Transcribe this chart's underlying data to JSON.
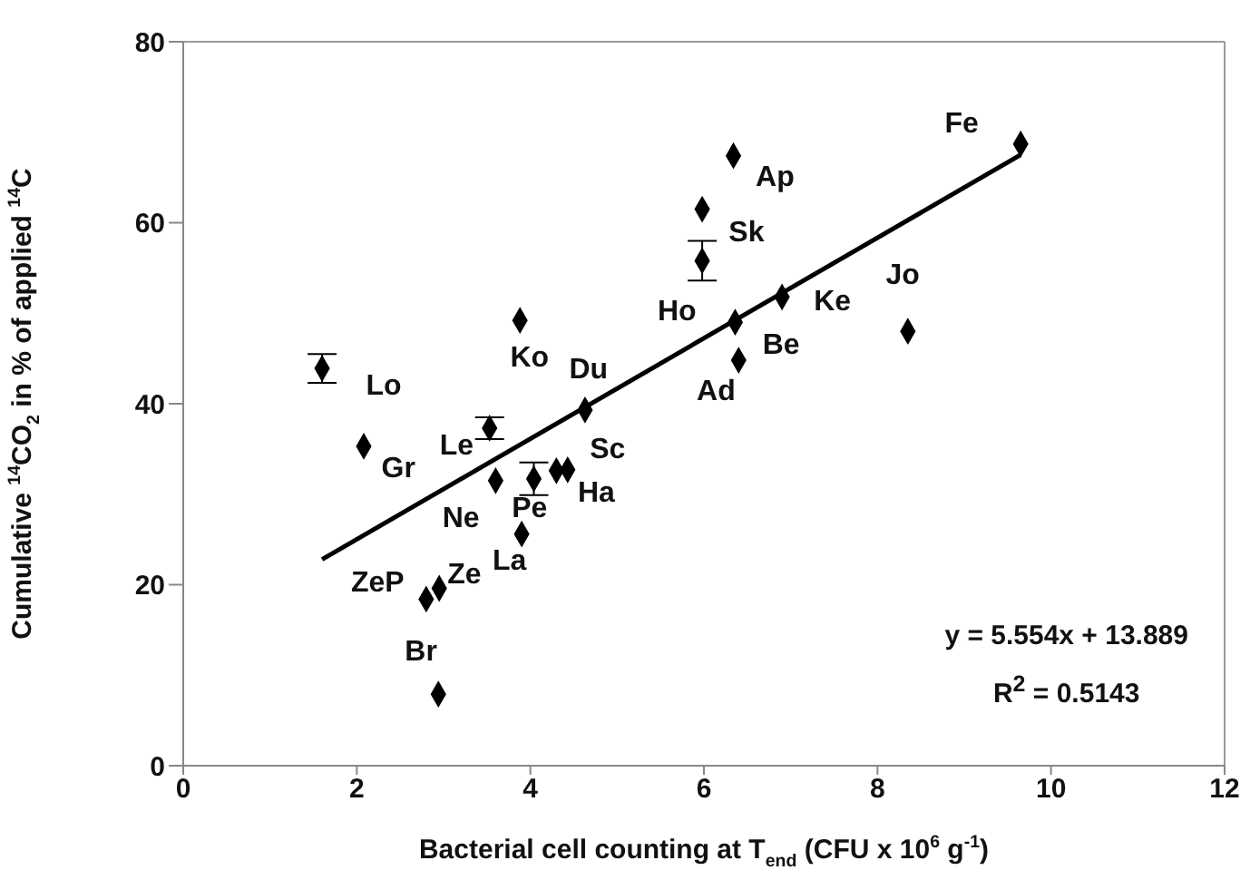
{
  "chart_data": {
    "type": "scatter",
    "xlabel": "Bacterial cell counting at T$_{end}$ (CFU x 10$^{6}$ g$^{-1}$)",
    "ylabel": "Cumulative $^{14}$CO$_{2}$ in % of applied $^{14}$C",
    "x": [
      1.6,
      2.08,
      3.53,
      3.88,
      4.63,
      3.6,
      4.04,
      4.3,
      4.43,
      3.9,
      2.8,
      2.95,
      2.94,
      9.65,
      6.34,
      5.98,
      5.98,
      6.36,
      6.9,
      6.4,
      8.35
    ],
    "series": [
      {
        "color": "#000000",
        "marker": "diamond",
        "values": [
          43.9,
          35.3,
          37.3,
          49.2,
          39.3,
          31.5,
          31.7,
          32.6,
          32.7,
          25.6,
          18.4,
          19.6,
          7.9,
          68.7,
          67.4,
          61.5,
          55.8,
          49.0,
          51.8,
          44.8,
          48.0
        ],
        "errors": [
          1.6,
          null,
          1.2,
          null,
          null,
          null,
          1.8,
          null,
          null,
          null,
          null,
          null,
          null,
          null,
          null,
          null,
          2.2,
          null,
          null,
          null,
          null
        ]
      },
      {
        "type": "line",
        "color": "#000000",
        "marker": "none",
        "x": [
          1.6,
          9.65
        ],
        "values": [
          22.8,
          67.5
        ]
      }
    ],
    "xlim": [
      0,
      12
    ],
    "xticks": [
      0,
      2,
      4,
      6,
      8,
      10,
      12
    ],
    "ylim": [
      0,
      80
    ],
    "yticks": [
      0,
      20,
      40,
      60,
      80
    ],
    "line_style": "solid",
    "annotations": [
      "Lo",
      "Gr",
      "Le",
      "Ko",
      "Du",
      "Sc",
      "Ha",
      "Pe",
      "Ne",
      "La",
      "ZeP",
      "Ze",
      "Br",
      "Fe",
      "Ap",
      "Sk",
      "Ho",
      "Ke",
      "Be",
      "Ad",
      "Jo",
      "y = 5.554x + 13.889",
      "R$^{2}$ = 0.5143"
    ]
  }
}
